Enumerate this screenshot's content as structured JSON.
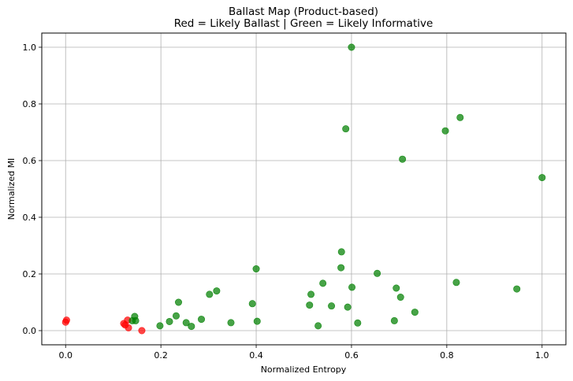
{
  "chart_data": {
    "type": "scatter",
    "title": "Ballast Map (Product-based)",
    "subtitle": "Red = Likely Ballast | Green = Likely Informative",
    "xlabel": "Normalized Entropy",
    "ylabel": "Normalized MI",
    "xlim": [
      -0.05,
      1.05
    ],
    "ylim": [
      -0.05,
      1.05
    ],
    "xticks": [
      "0.0",
      "0.2",
      "0.4",
      "0.6",
      "0.8",
      "1.0"
    ],
    "yticks": [
      "0.0",
      "0.2",
      "0.4",
      "0.6",
      "0.8",
      "1.0"
    ],
    "grid": true,
    "colors": {
      "ballast": "#ff0000",
      "informative": "#008000"
    },
    "series": [
      {
        "color_key": "ballast",
        "points": [
          [
            0.0,
            0.03
          ],
          [
            0.002,
            0.037
          ],
          [
            0.122,
            0.025
          ],
          [
            0.125,
            0.02
          ],
          [
            0.13,
            0.037
          ],
          [
            0.132,
            0.01
          ],
          [
            0.16,
            0.0
          ]
        ]
      },
      {
        "color_key": "informative",
        "points": [
          [
            0.14,
            0.035
          ],
          [
            0.145,
            0.05
          ],
          [
            0.147,
            0.035
          ],
          [
            0.198,
            0.017
          ],
          [
            0.218,
            0.032
          ],
          [
            0.232,
            0.052
          ],
          [
            0.237,
            0.1
          ],
          [
            0.253,
            0.028
          ],
          [
            0.264,
            0.015
          ],
          [
            0.285,
            0.04
          ],
          [
            0.302,
            0.128
          ],
          [
            0.317,
            0.14
          ],
          [
            0.347,
            0.028
          ],
          [
            0.392,
            0.095
          ],
          [
            0.4,
            0.218
          ],
          [
            0.402,
            0.033
          ],
          [
            0.512,
            0.09
          ],
          [
            0.515,
            0.128
          ],
          [
            0.53,
            0.017
          ],
          [
            0.54,
            0.167
          ],
          [
            0.558,
            0.087
          ],
          [
            0.578,
            0.222
          ],
          [
            0.579,
            0.278
          ],
          [
            0.588,
            0.712
          ],
          [
            0.592,
            0.083
          ],
          [
            0.6,
            1.0
          ],
          [
            0.601,
            0.153
          ],
          [
            0.613,
            0.027
          ],
          [
            0.654,
            0.202
          ],
          [
            0.69,
            0.035
          ],
          [
            0.694,
            0.15
          ],
          [
            0.703,
            0.118
          ],
          [
            0.707,
            0.605
          ],
          [
            0.733,
            0.065
          ],
          [
            0.797,
            0.705
          ],
          [
            0.82,
            0.17
          ],
          [
            0.828,
            0.752
          ],
          [
            0.947,
            0.147
          ],
          [
            1.0,
            0.54
          ]
        ]
      }
    ]
  }
}
